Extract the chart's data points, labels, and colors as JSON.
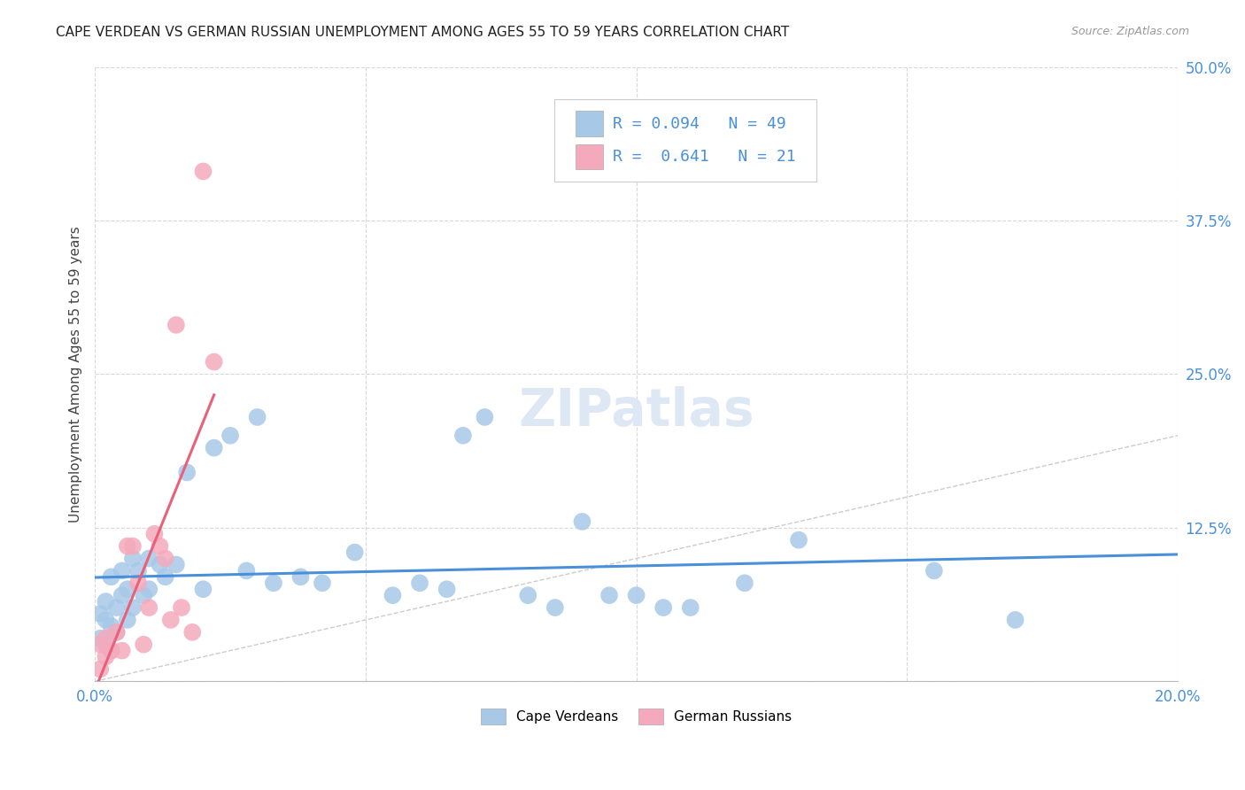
{
  "title": "CAPE VERDEAN VS GERMAN RUSSIAN UNEMPLOYMENT AMONG AGES 55 TO 59 YEARS CORRELATION CHART",
  "source": "Source: ZipAtlas.com",
  "ylabel": "Unemployment Among Ages 55 to 59 years",
  "xlim": [
    0.0,
    0.2
  ],
  "ylim": [
    0.0,
    0.5
  ],
  "xticks": [
    0.0,
    0.05,
    0.1,
    0.15,
    0.2
  ],
  "xtick_labels": [
    "0.0%",
    "",
    "",
    "",
    "20.0%"
  ],
  "yticks": [
    0.0,
    0.125,
    0.25,
    0.375,
    0.5
  ],
  "ytick_labels": [
    "",
    "12.5%",
    "25.0%",
    "37.5%",
    "50.0%"
  ],
  "background_color": "#ffffff",
  "grid_color": "#d8d8d8",
  "cape_verdean_color": "#a8c8e8",
  "german_russian_color": "#f4aabc",
  "cape_verdean_R": 0.094,
  "cape_verdean_N": 49,
  "german_russian_R": 0.641,
  "german_russian_N": 21,
  "cape_verdean_line_color": "#4a90d9",
  "german_russian_line_color": "#e8607a",
  "diagonal_line_color": "#cccccc",
  "legend_color": "#4a90d9",
  "cape_verdean_x": [
    0.001,
    0.001,
    0.002,
    0.002,
    0.002,
    0.003,
    0.003,
    0.003,
    0.004,
    0.004,
    0.005,
    0.005,
    0.006,
    0.006,
    0.007,
    0.007,
    0.008,
    0.009,
    0.01,
    0.01,
    0.012,
    0.013,
    0.015,
    0.017,
    0.02,
    0.022,
    0.025,
    0.028,
    0.03,
    0.033,
    0.038,
    0.042,
    0.048,
    0.055,
    0.06,
    0.065,
    0.068,
    0.072,
    0.08,
    0.085,
    0.09,
    0.095,
    0.1,
    0.105,
    0.11,
    0.12,
    0.13,
    0.155,
    0.17
  ],
  "cape_verdean_y": [
    0.055,
    0.035,
    0.03,
    0.05,
    0.065,
    0.025,
    0.045,
    0.085,
    0.04,
    0.06,
    0.07,
    0.09,
    0.05,
    0.075,
    0.06,
    0.1,
    0.09,
    0.07,
    0.1,
    0.075,
    0.095,
    0.085,
    0.095,
    0.17,
    0.075,
    0.19,
    0.2,
    0.09,
    0.215,
    0.08,
    0.085,
    0.08,
    0.105,
    0.07,
    0.08,
    0.075,
    0.2,
    0.215,
    0.07,
    0.06,
    0.13,
    0.07,
    0.07,
    0.06,
    0.06,
    0.08,
    0.115,
    0.09,
    0.05
  ],
  "german_russian_x": [
    0.001,
    0.001,
    0.002,
    0.002,
    0.003,
    0.004,
    0.005,
    0.006,
    0.007,
    0.008,
    0.009,
    0.01,
    0.011,
    0.012,
    0.013,
    0.014,
    0.015,
    0.016,
    0.018,
    0.02,
    0.022
  ],
  "german_russian_y": [
    0.01,
    0.03,
    0.02,
    0.035,
    0.025,
    0.04,
    0.025,
    0.11,
    0.11,
    0.08,
    0.03,
    0.06,
    0.12,
    0.11,
    0.1,
    0.05,
    0.29,
    0.06,
    0.04,
    0.415,
    0.26
  ]
}
